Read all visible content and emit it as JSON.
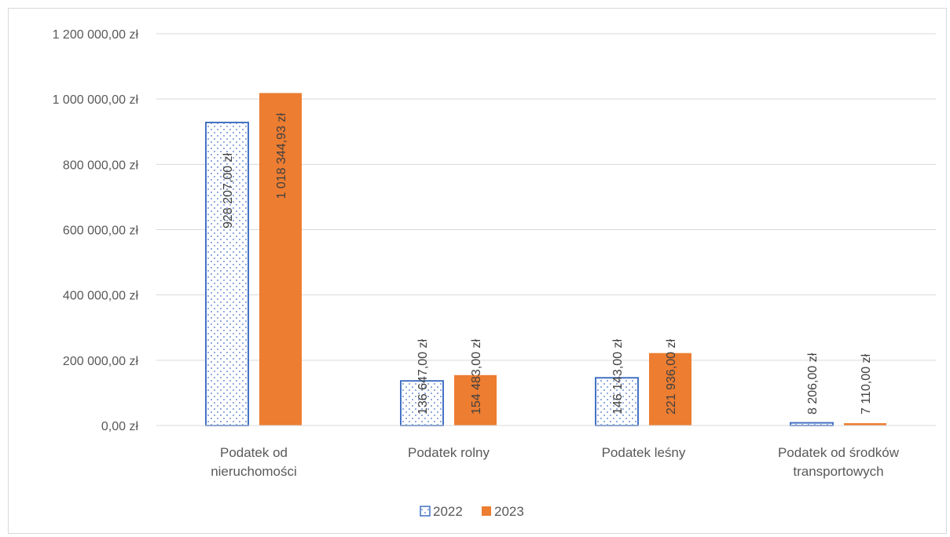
{
  "chart_data": {
    "type": "bar",
    "categories": [
      [
        "Podatek od",
        "nieruchomości"
      ],
      [
        "Podatek rolny"
      ],
      [
        "Podatek leśny"
      ],
      [
        "Podatek od środków",
        "transportowych"
      ]
    ],
    "series": [
      {
        "name": "2022",
        "values": [
          928207.0,
          136647.0,
          146143.0,
          8206.0
        ],
        "labels": [
          "928 207,00 zł",
          "136 647,00 zł",
          "146 143,00 zł",
          "8 206,00 zł"
        ],
        "color": "#4472C4",
        "pattern": "dotted-outline"
      },
      {
        "name": "2023",
        "values": [
          1018344.93,
          154483.0,
          221936.0,
          7110.0
        ],
        "labels": [
          "1 018 344,93 zł",
          "154 483,00 zł",
          "221 936,00 zł",
          "7 110,00 zł"
        ],
        "color": "#ED7D31",
        "pattern": "solid"
      }
    ],
    "ylim": [
      0,
      1200000
    ],
    "yticks": [
      {
        "value": 0,
        "label": "0,00 zł"
      },
      {
        "value": 200000,
        "label": "200 000,00 zł"
      },
      {
        "value": 400000,
        "label": "400 000,00 zł"
      },
      {
        "value": 600000,
        "label": "600 000,00 zł"
      },
      {
        "value": 800000,
        "label": "800 000,00 zł"
      },
      {
        "value": 1000000,
        "label": "1 000 000,00 zł"
      },
      {
        "value": 1200000,
        "label": "1 200 000,00 zł"
      }
    ],
    "grid": true,
    "legend": "bottom-center",
    "title": "",
    "xlabel": "",
    "ylabel": ""
  }
}
